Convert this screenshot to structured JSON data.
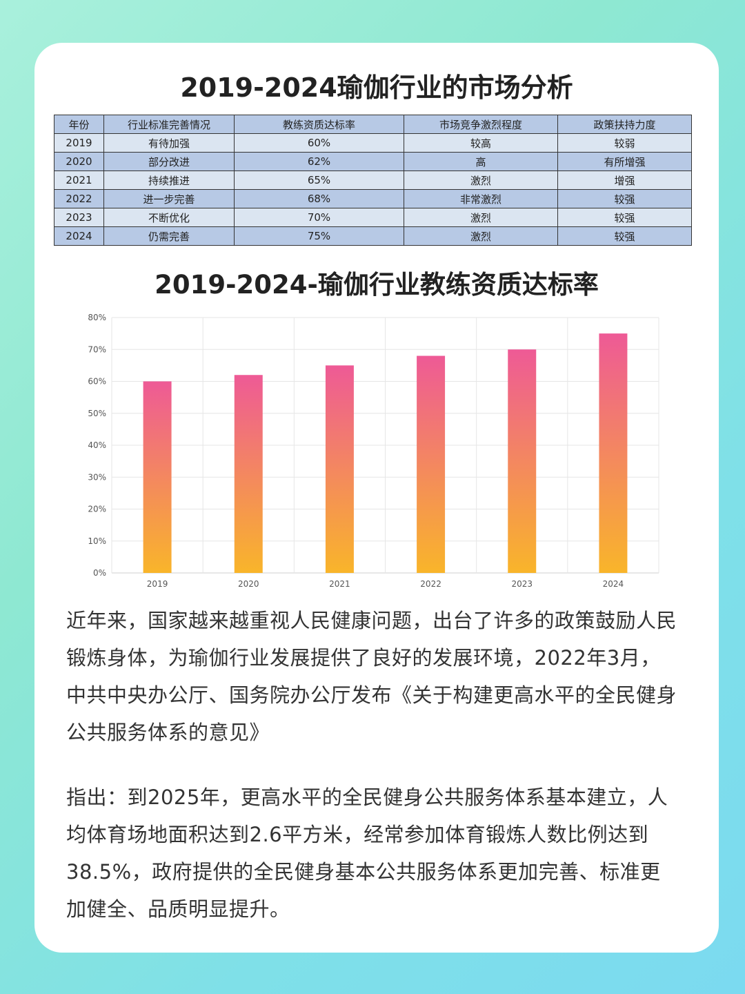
{
  "page": {
    "title": "2019-2024瑜伽行业的市场分析",
    "chart_title": "2019-2024-瑜伽行业教练资质达标率"
  },
  "table": {
    "headers": [
      "年份",
      "行业标准完善情况",
      "教练资质达标率",
      "市场竞争激烈程度",
      "政策扶持力度"
    ],
    "rows": [
      [
        "2019",
        "有待加强",
        "60%",
        "较高",
        "较弱"
      ],
      [
        "2020",
        "部分改进",
        "62%",
        "高",
        "有所增强"
      ],
      [
        "2021",
        "持续推进",
        "65%",
        "激烈",
        "增强"
      ],
      [
        "2022",
        "进一步完善",
        "68%",
        "非常激烈",
        "较强"
      ],
      [
        "2023",
        "不断优化",
        "70%",
        "激烈",
        "较强"
      ],
      [
        "2024",
        "仍需完善",
        "75%",
        "激烈",
        "较强"
      ]
    ]
  },
  "chart_data": {
    "type": "bar",
    "title": "2019-2024-瑜伽行业教练资质达标率",
    "categories": [
      "2019",
      "2020",
      "2021",
      "2022",
      "2023",
      "2024"
    ],
    "values": [
      60,
      62,
      65,
      68,
      70,
      75
    ],
    "ylim": [
      0,
      80
    ],
    "yticks": [
      0,
      10,
      20,
      30,
      40,
      50,
      60,
      70,
      80
    ],
    "ytick_labels": [
      "0%",
      "10%",
      "20%",
      "30%",
      "40%",
      "50%",
      "60%",
      "70%",
      "80%"
    ],
    "grid": true,
    "bar_gradient": [
      "#ee5a96",
      "#f9b52a"
    ]
  },
  "paragraphs": [
    "近年来，国家越来越重视人民健康问题，出台了许多的政策鼓励人民锻炼身体，为瑜伽行业发展提供了良好的发展环境，2022年3月，中共中央办公厅、国务院办公厅发布《关于构建更高水平的全民健身公共服务体系的意见》",
    "指出：到2025年，更高水平的全民健身公共服务体系基本建立，人均体育场地面积达到2.6平方米，经常参加体育锻炼人数比例达到38.5%，政府提供的全民健身基本公共服务体系更加完善、标准更加健全、品质明显提升。"
  ]
}
